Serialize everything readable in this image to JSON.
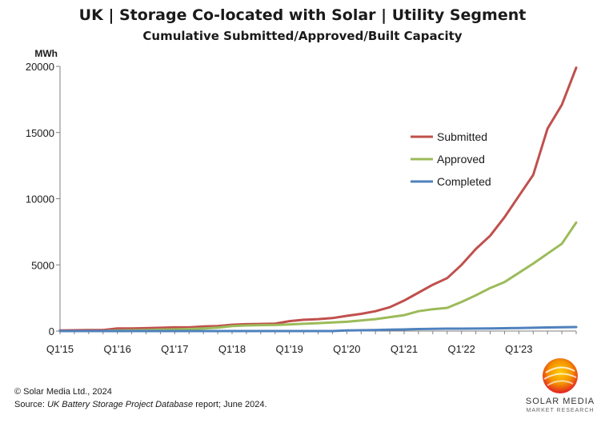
{
  "chart_data": {
    "type": "line",
    "title": "UK | Storage Co-located with Solar | Utility Segment",
    "subtitle": "Cumulative Submitted/Approved/Built Capacity",
    "ylabel": "MWh",
    "xlabel": "",
    "ylim": [
      0,
      20000
    ],
    "yticks": [
      "0",
      "5000",
      "10000",
      "15000",
      "20000"
    ],
    "xtick_labels": [
      "Q1'15",
      "Q1'16",
      "Q1'17",
      "Q1'18",
      "Q1'19",
      "Q1'20",
      "Q1'21",
      "Q1'22",
      "Q1'23"
    ],
    "x": [
      "Q1'15",
      "Q2'15",
      "Q3'15",
      "Q4'15",
      "Q1'16",
      "Q2'16",
      "Q3'16",
      "Q4'16",
      "Q1'17",
      "Q2'17",
      "Q3'17",
      "Q4'17",
      "Q1'18",
      "Q2'18",
      "Q3'18",
      "Q4'18",
      "Q1'19",
      "Q2'19",
      "Q3'19",
      "Q4'19",
      "Q1'20",
      "Q2'20",
      "Q3'20",
      "Q4'20",
      "Q1'21",
      "Q2'21",
      "Q3'21",
      "Q4'21",
      "Q1'22",
      "Q2'22",
      "Q3'22",
      "Q4'22",
      "Q1'23",
      "Q2'23",
      "Q3'23",
      "Q4'23",
      "Q1'24"
    ],
    "grid": false,
    "legend_position": "right",
    "series": [
      {
        "name": "Submitted",
        "color": "#c0504d",
        "values": [
          50,
          60,
          70,
          80,
          200,
          200,
          220,
          250,
          280,
          280,
          350,
          380,
          480,
          520,
          540,
          560,
          750,
          850,
          900,
          980,
          1150,
          1300,
          1500,
          1800,
          2300,
          2900,
          3500,
          4000,
          5000,
          6200,
          7200,
          8600,
          10200,
          11800,
          15300,
          17100,
          19900
        ]
      },
      {
        "name": "Approved",
        "color": "#9bbb59",
        "values": [
          0,
          0,
          0,
          0,
          50,
          60,
          80,
          100,
          120,
          150,
          200,
          260,
          380,
          420,
          450,
          460,
          500,
          550,
          600,
          650,
          700,
          800,
          900,
          1050,
          1200,
          1500,
          1650,
          1750,
          2200,
          2700,
          3250,
          3700,
          4400,
          5100,
          5850,
          6600,
          8200
        ]
      },
      {
        "name": "Completed",
        "color": "#4f81bd",
        "values": [
          0,
          0,
          0,
          0,
          0,
          0,
          0,
          0,
          0,
          0,
          0,
          0,
          0,
          0,
          0,
          0,
          0,
          0,
          0,
          0,
          50,
          60,
          80,
          100,
          120,
          150,
          170,
          180,
          180,
          190,
          200,
          210,
          230,
          250,
          270,
          290,
          300
        ]
      }
    ]
  },
  "footer": {
    "copyright": "© Solar Media Ltd., 2024",
    "source_prefix": "Source: ",
    "source_report": "UK Battery Storage Project Database",
    "source_suffix": " report; June 2024."
  },
  "logo": {
    "line1": "SOLAR MEDIA",
    "line2": "MARKET RESEARCH",
    "colors": [
      "#e31e24",
      "#f39200",
      "#ffcc00"
    ]
  }
}
